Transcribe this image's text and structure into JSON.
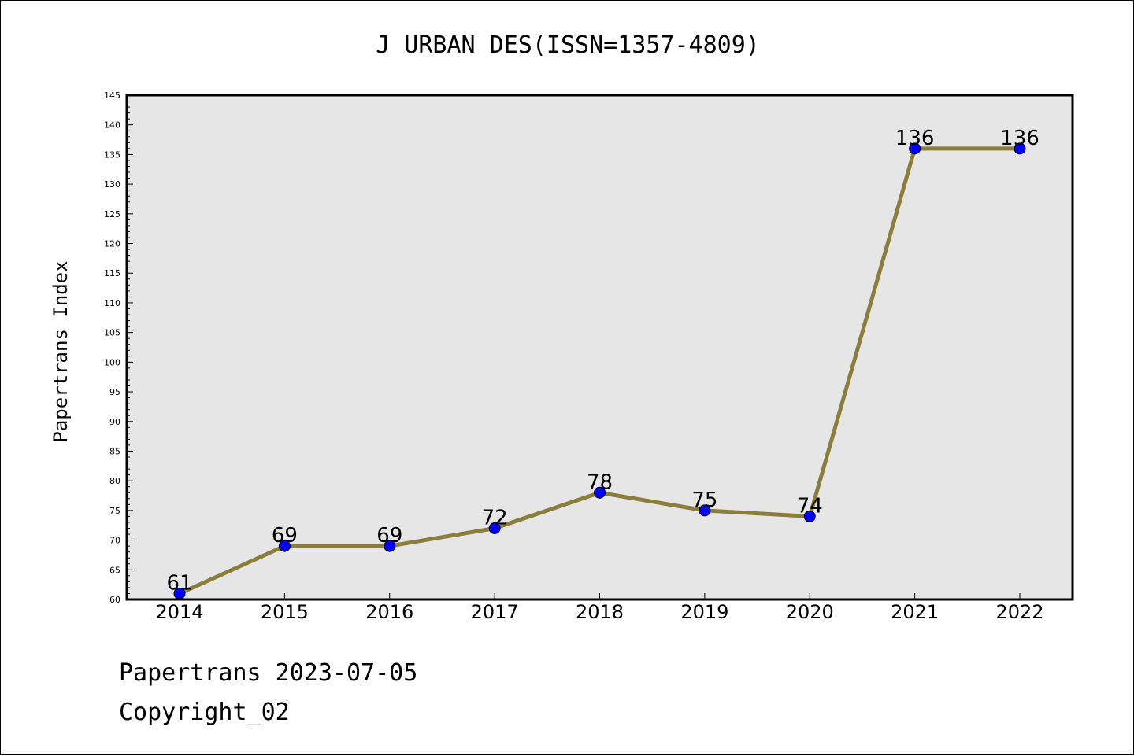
{
  "chart_data": {
    "type": "line",
    "title": "J URBAN DES(ISSN=1357-4809)",
    "xlabel": "",
    "ylabel": "Papertrans Index",
    "categories": [
      "2014",
      "2015",
      "2016",
      "2017",
      "2018",
      "2019",
      "2020",
      "2021",
      "2022"
    ],
    "series": [
      {
        "values": [
          61,
          69,
          69,
          72,
          78,
          75,
          74,
          136,
          136
        ]
      }
    ],
    "ylim": [
      60,
      145
    ],
    "yticks": [
      60,
      65,
      70,
      75,
      80,
      85,
      90,
      95,
      100,
      105,
      110,
      115,
      120,
      125,
      130,
      135,
      140,
      145
    ],
    "data_labels": true,
    "grid": false,
    "line_color": "#8b7d3a",
    "marker_color": "#0000ff",
    "plot_background": "#e6e6e6"
  },
  "footer": {
    "line1": "Papertrans 2023-07-05",
    "line2": "Copyright_02"
  }
}
